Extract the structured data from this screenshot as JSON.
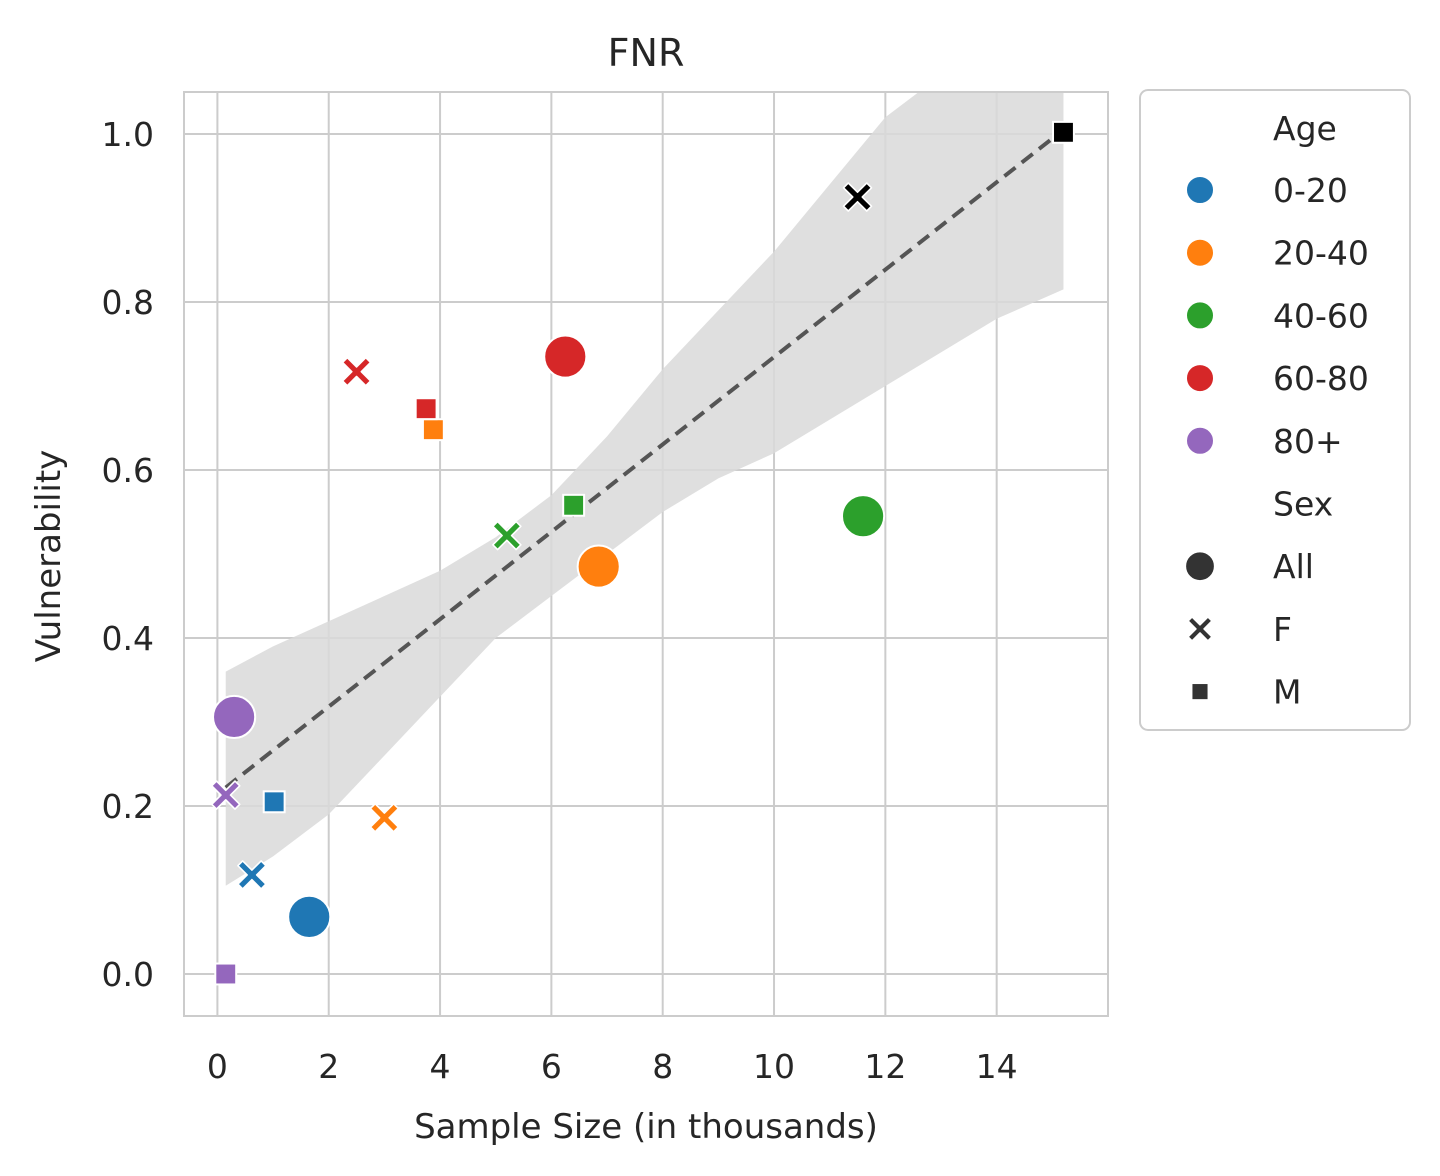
{
  "chart_data": {
    "type": "scatter",
    "title": "FNR",
    "xlabel": "Sample Size (in thousands)",
    "ylabel": "Vulnerability",
    "xlim": [
      -0.6,
      16.0
    ],
    "ylim": [
      -0.05,
      1.05
    ],
    "xticks": [
      0,
      2,
      4,
      6,
      8,
      10,
      12,
      14
    ],
    "yticks": [
      0.0,
      0.2,
      0.4,
      0.6,
      0.8,
      1.0
    ],
    "xtick_labels": [
      "0",
      "2",
      "4",
      "6",
      "8",
      "10",
      "12",
      "14"
    ],
    "ytick_labels": [
      "0.0",
      "0.2",
      "0.4",
      "0.6",
      "0.8",
      "1.0"
    ],
    "grid": true,
    "legend_position": "outside-right",
    "colors": {
      "0-20": "#1f77b4",
      "20-40": "#ff7f0e",
      "40-60": "#2ca02c",
      "60-80": "#d62728",
      "80+": "#9467bd",
      "black": "#000000",
      "fit_line": "#555555",
      "band": "#d9d9d9"
    },
    "points": [
      {
        "x": 1.65,
        "y": 0.068,
        "age": "0-20",
        "sex": "All"
      },
      {
        "x": 0.62,
        "y": 0.118,
        "age": "0-20",
        "sex": "F"
      },
      {
        "x": 1.02,
        "y": 0.205,
        "age": "0-20",
        "sex": "M"
      },
      {
        "x": 6.85,
        "y": 0.485,
        "age": "20-40",
        "sex": "All"
      },
      {
        "x": 3.0,
        "y": 0.186,
        "age": "20-40",
        "sex": "F"
      },
      {
        "x": 3.88,
        "y": 0.648,
        "age": "20-40",
        "sex": "M"
      },
      {
        "x": 11.6,
        "y": 0.545,
        "age": "40-60",
        "sex": "All"
      },
      {
        "x": 5.2,
        "y": 0.522,
        "age": "40-60",
        "sex": "F"
      },
      {
        "x": 6.4,
        "y": 0.558,
        "age": "40-60",
        "sex": "M"
      },
      {
        "x": 6.25,
        "y": 0.735,
        "age": "60-80",
        "sex": "All"
      },
      {
        "x": 2.5,
        "y": 0.717,
        "age": "60-80",
        "sex": "F"
      },
      {
        "x": 3.75,
        "y": 0.673,
        "age": "60-80",
        "sex": "M"
      },
      {
        "x": 0.3,
        "y": 0.306,
        "age": "80+",
        "sex": "All"
      },
      {
        "x": 0.15,
        "y": 0.213,
        "age": "80+",
        "sex": "F"
      },
      {
        "x": 0.15,
        "y": 0.0,
        "age": "80+",
        "sex": "M"
      },
      {
        "x": 11.5,
        "y": 0.925,
        "age": "black",
        "sex": "F"
      },
      {
        "x": 15.2,
        "y": 1.002,
        "age": "black",
        "sex": "M"
      }
    ],
    "fit_line": {
      "x": [
        0.15,
        15.2
      ],
      "y": [
        0.222,
        1.005
      ]
    },
    "confidence_band": {
      "x": [
        0.15,
        1.0,
        2.0,
        3.0,
        4.0,
        5.0,
        6.0,
        7.0,
        8.0,
        9.0,
        10.0,
        11.0,
        12.0,
        13.0,
        14.0,
        15.2
      ],
      "upper": [
        0.36,
        0.39,
        0.42,
        0.45,
        0.48,
        0.52,
        0.57,
        0.64,
        0.72,
        0.79,
        0.86,
        0.94,
        1.02,
        1.07,
        1.1,
        1.13
      ],
      "lower": [
        0.105,
        0.14,
        0.19,
        0.26,
        0.33,
        0.4,
        0.45,
        0.5,
        0.55,
        0.59,
        0.62,
        0.66,
        0.7,
        0.74,
        0.78,
        0.815
      ]
    },
    "legend": {
      "age_title": "Age",
      "age_items": [
        "0-20",
        "20-40",
        "40-60",
        "60-80",
        "80+"
      ],
      "sex_title": "Sex",
      "sex_items": [
        {
          "label": "All",
          "marker": "circle"
        },
        {
          "label": "F",
          "marker": "x"
        },
        {
          "label": "M",
          "marker": "square"
        }
      ]
    }
  }
}
